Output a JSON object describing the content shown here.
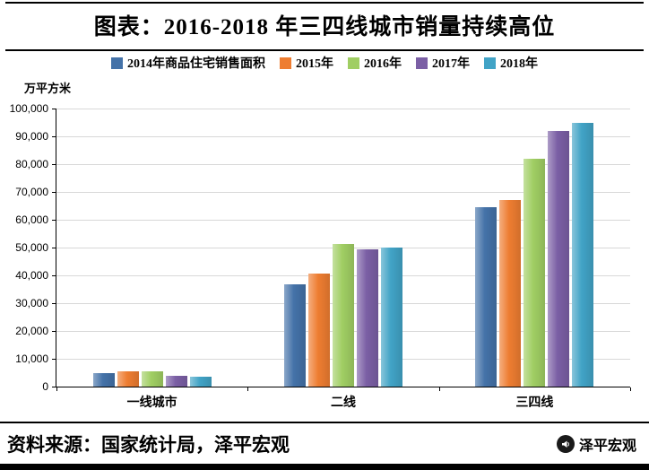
{
  "title": "图表：2016-2018 年三四线城市销量持续高位",
  "chart_data": {
    "type": "bar",
    "categories": [
      "一线城市",
      "二线",
      "三四线"
    ],
    "series": [
      {
        "name": "2014年商品住宅销售面积",
        "color": "#4472A8",
        "values": [
          4800,
          36700,
          64500
        ]
      },
      {
        "name": "2015年",
        "color": "#EE7D31",
        "values": [
          5600,
          40600,
          67200
        ]
      },
      {
        "name": "2016年",
        "color": "#A0CE63",
        "values": [
          5500,
          51200,
          81800
        ]
      },
      {
        "name": "2017年",
        "color": "#7B5FA5",
        "values": [
          4000,
          49300,
          92000
        ]
      },
      {
        "name": "2018年",
        "color": "#41A3C6",
        "values": [
          3700,
          50000,
          94800
        ]
      }
    ],
    "ylabel": "万平方米",
    "ylim": [
      0,
      100000
    ],
    "ytick_step": 10000,
    "grid": true,
    "legend_position": "top"
  },
  "footer": {
    "source": "资料来源：国家统计局，泽平宏观",
    "logo_text": "泽平宏观"
  }
}
